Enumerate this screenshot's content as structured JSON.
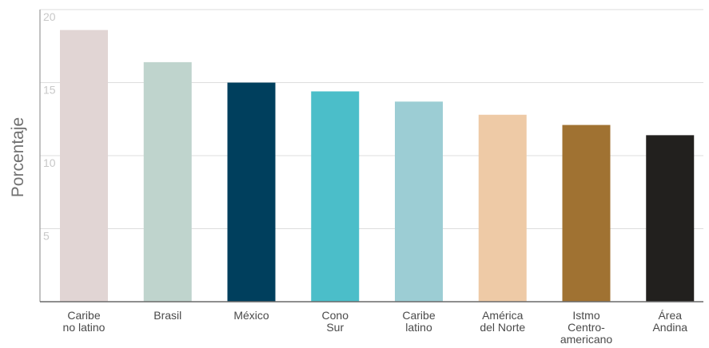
{
  "chart_data": {
    "type": "bar",
    "ylabel": "Porcentaje",
    "xlabel": "",
    "title": "",
    "ylim": [
      0,
      20
    ],
    "yticks": [
      5,
      10,
      15,
      20
    ],
    "grid": true,
    "categories": [
      [
        "Caribe",
        "no latino"
      ],
      [
        "Brasil"
      ],
      [
        "México"
      ],
      [
        "Cono",
        "Sur"
      ],
      [
        "Caribe",
        "latino"
      ],
      [
        "América",
        "del Norte"
      ],
      [
        "Istmo",
        "Centro-",
        "americano"
      ],
      [
        "Área",
        "Andina"
      ]
    ],
    "values": [
      18.6,
      16.4,
      15.0,
      14.4,
      13.7,
      12.8,
      12.1,
      11.4
    ],
    "colors": [
      "#e1d5d4",
      "#bfd4cd",
      "#003f5d",
      "#4bbec9",
      "#9ccdd4",
      "#eecaa6",
      "#a07232",
      "#22201e"
    ]
  }
}
